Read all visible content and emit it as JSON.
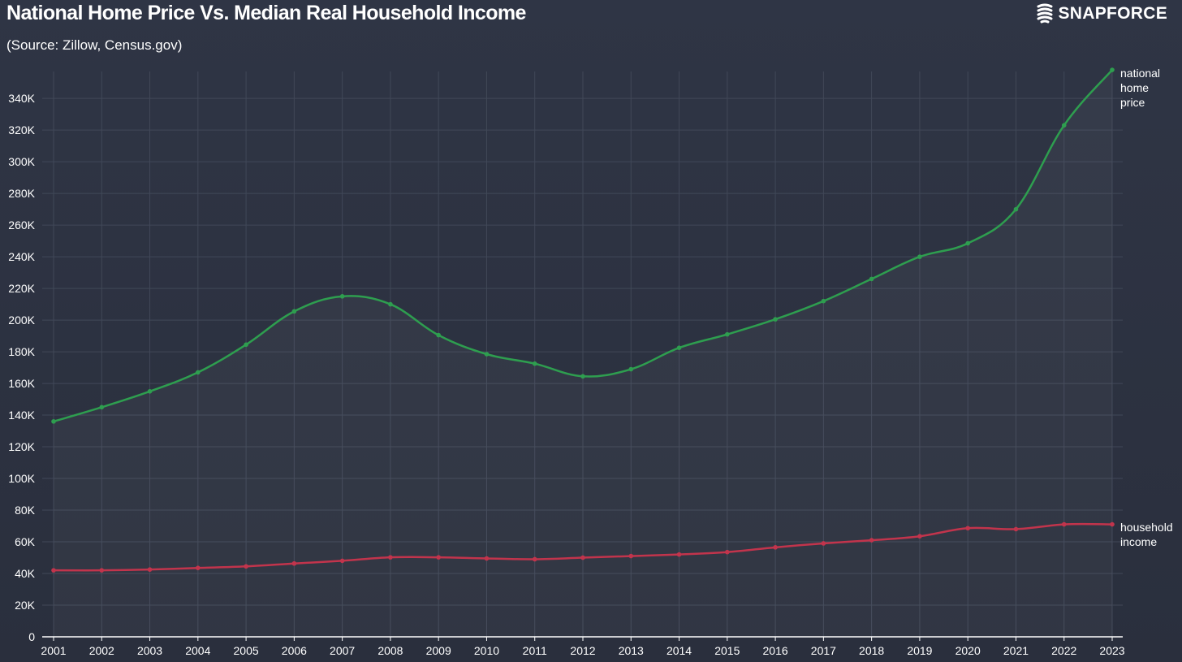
{
  "header": {
    "title": "National Home Price Vs. Median Real Household Income",
    "subtitle": "(Source: Zillow, Census.gov)",
    "brand": "SNAPFORCE"
  },
  "colors": {
    "background": "#2b3140",
    "grid": "#414858",
    "axis": "#ffffff",
    "home_price": "#2e9e4f",
    "household_income": "#c2344c"
  },
  "chart_data": {
    "type": "line",
    "title": "National Home Price Vs. Median Real Household Income",
    "subtitle": "(Source: Zillow, Census.gov)",
    "x": [
      2001,
      2002,
      2003,
      2004,
      2005,
      2006,
      2007,
      2008,
      2009,
      2010,
      2011,
      2012,
      2013,
      2014,
      2015,
      2016,
      2017,
      2018,
      2019,
      2020,
      2021,
      2022,
      2023
    ],
    "x_tick_labels": [
      "2001",
      "2002",
      "2003",
      "2004",
      "2005",
      "2006",
      "2007",
      "2008",
      "2009",
      "2010",
      "2011",
      "2012",
      "2013",
      "2014",
      "2015",
      "2016",
      "2017",
      "2018",
      "2019",
      "2020",
      "2021",
      "2022",
      "2023"
    ],
    "y_ticks": [
      0,
      20000,
      40000,
      60000,
      80000,
      100000,
      120000,
      140000,
      160000,
      180000,
      200000,
      220000,
      240000,
      260000,
      280000,
      300000,
      320000,
      340000
    ],
    "y_tick_labels": [
      "0",
      "20K",
      "40K",
      "60K",
      "80K",
      "100K",
      "120K",
      "140K",
      "160K",
      "180K",
      "200K",
      "220K",
      "240K",
      "260K",
      "280K",
      "300K",
      "320K",
      "340K"
    ],
    "ylim": [
      0,
      357000
    ],
    "grid": true,
    "series": [
      {
        "key": "home_price",
        "label_lines": [
          "national",
          "home",
          "price"
        ],
        "values": [
          136000,
          145000,
          155000,
          167000,
          184500,
          205500,
          215000,
          210000,
          190500,
          178500,
          172500,
          164500,
          169000,
          182500,
          191000,
          200500,
          212000,
          226000,
          240000,
          248500,
          270000,
          323000,
          358000
        ]
      },
      {
        "key": "household_income",
        "label_lines": [
          "household",
          "income"
        ],
        "values": [
          42000,
          42000,
          42500,
          43500,
          44500,
          46300,
          48000,
          50200,
          50200,
          49500,
          49000,
          50000,
          51000,
          52000,
          53500,
          56500,
          59000,
          61000,
          63500,
          68600,
          68000,
          71000,
          71000
        ]
      }
    ]
  }
}
